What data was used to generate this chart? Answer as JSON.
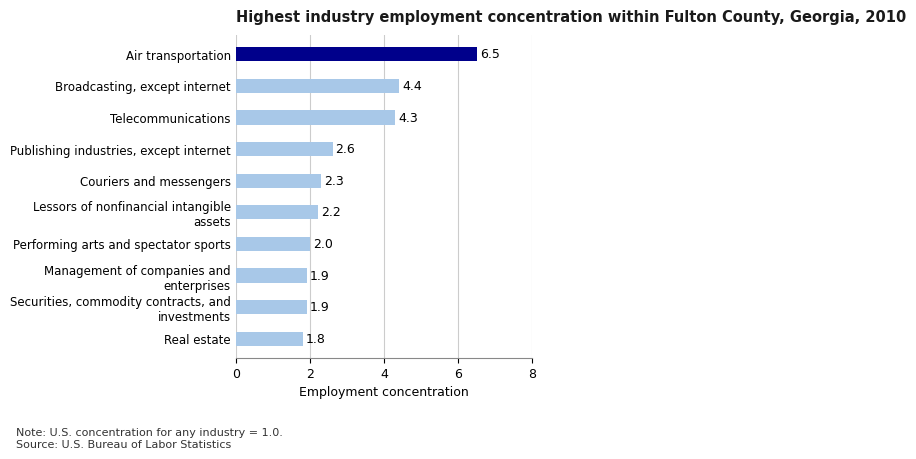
{
  "title": "Highest industry employment concentration within Fulton County, Georgia, 2010",
  "categories": [
    "Real estate",
    "Securities, commodity contracts, and\ninvestments",
    "Management of companies and\nenterprises",
    "Performing arts and spectator sports",
    "Lessors of nonfinancial intangible\nassets",
    "Couriers and messengers",
    "Publishing industries, except internet",
    "Telecommunications",
    "Broadcasting, except internet",
    "Air transportation"
  ],
  "values": [
    1.8,
    1.9,
    1.9,
    2.0,
    2.2,
    2.3,
    2.6,
    4.3,
    4.4,
    6.5
  ],
  "bar_colors": [
    "#a8c8e8",
    "#a8c8e8",
    "#a8c8e8",
    "#a8c8e8",
    "#a8c8e8",
    "#a8c8e8",
    "#a8c8e8",
    "#a8c8e8",
    "#a8c8e8",
    "#00008b"
  ],
  "xlabel": "Employment concentration",
  "xlim": [
    0,
    8
  ],
  "xticks": [
    0,
    2,
    4,
    6,
    8
  ],
  "title_fontsize": 10.5,
  "label_fontsize": 8.5,
  "tick_fontsize": 9.0,
  "value_fontsize": 9.0,
  "note": "Note: U.S. concentration for any industry = 1.0.\nSource: U.S. Bureau of Labor Statistics",
  "note_fontsize": 8.0,
  "background_color": "#ffffff",
  "grid_color": "#cccccc"
}
